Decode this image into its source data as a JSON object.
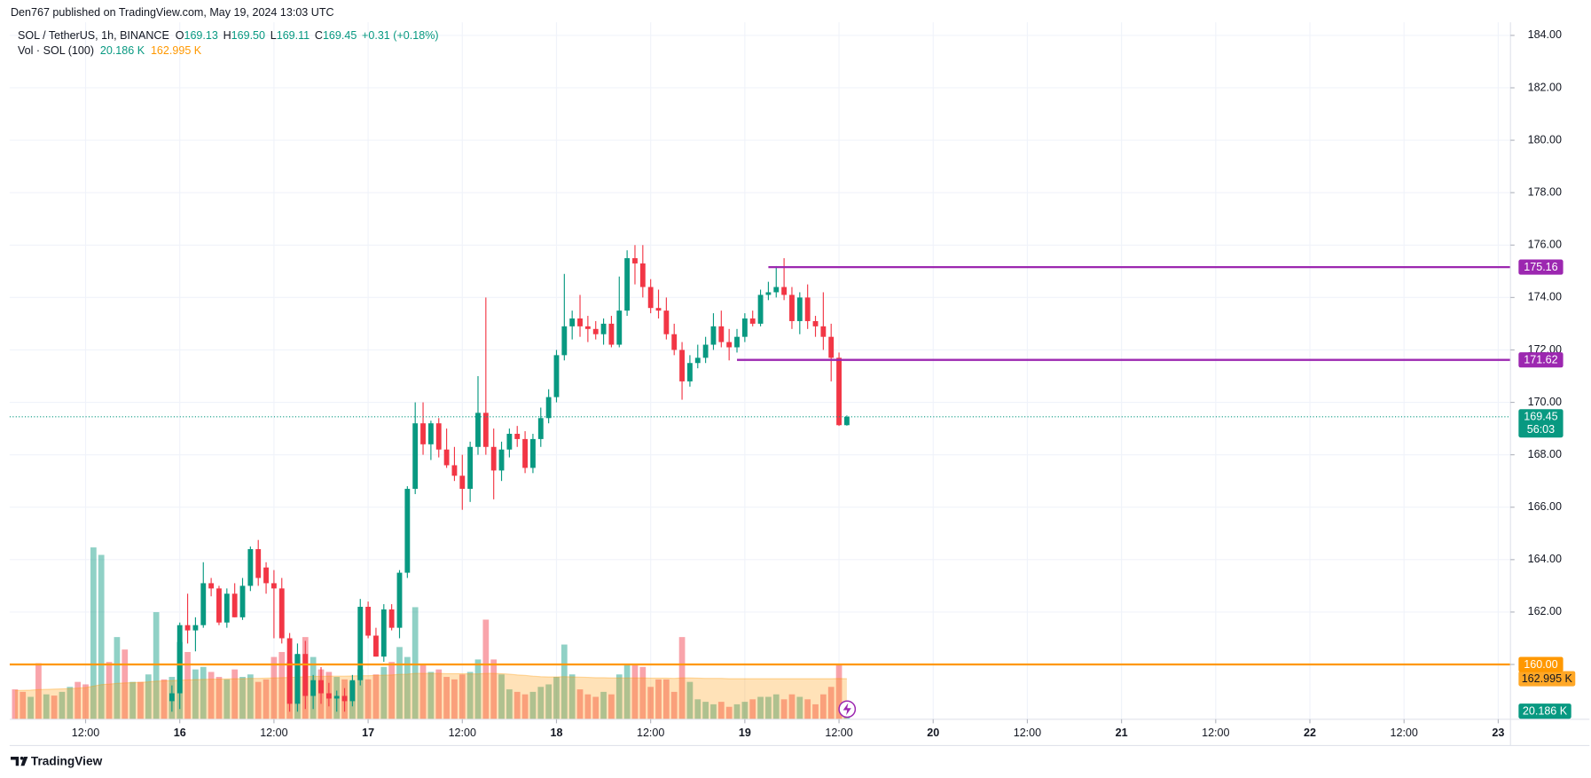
{
  "chart_data": {
    "type": "candlestick",
    "publisher": "Den767 published on TradingView.com, May 19, 2024 13:03 UTC",
    "title": "SOL / TetherUS, 1h, BINANCE",
    "ohlc_legend": [
      [
        "O",
        "169.13"
      ],
      [
        "H",
        "169.50"
      ],
      [
        "L",
        "169.11"
      ],
      [
        "C",
        "169.45"
      ]
    ],
    "change_label": "+0.31 (+0.18%)",
    "footer": "TradingView",
    "up_color": "#089981",
    "down_color": "#f23645",
    "x": [
      1,
      2,
      3,
      4,
      5,
      6,
      7,
      8,
      9,
      10,
      11,
      12,
      13,
      14,
      15,
      16,
      17,
      18,
      19,
      20,
      21,
      22,
      23,
      24,
      25,
      26,
      27,
      28,
      29,
      30,
      31,
      32,
      33,
      34,
      35,
      36,
      37,
      38,
      39,
      40,
      41,
      42,
      43,
      44,
      45,
      46,
      47,
      48,
      49,
      50,
      51,
      52,
      53,
      54,
      55,
      56,
      57,
      58,
      59,
      60,
      61,
      62,
      63,
      64,
      65,
      66,
      67,
      68,
      69,
      70,
      71,
      72,
      73,
      74,
      75,
      76,
      77,
      78,
      79,
      80,
      81,
      82,
      83,
      84,
      85,
      86,
      87,
      88,
      89,
      90,
      91,
      92,
      93,
      94,
      95,
      96,
      97,
      98,
      99,
      100,
      101,
      102,
      103,
      104,
      105,
      106,
      107
    ],
    "open": [
      null,
      null,
      null,
      null,
      null,
      null,
      null,
      null,
      null,
      null,
      null,
      null,
      null,
      null,
      null,
      null,
      null,
      null,
      null,
      null,
      158.6,
      158.9,
      161.5,
      161.3,
      161.5,
      163.1,
      162.9,
      161.6,
      162.7,
      161.8,
      163.0,
      164.4,
      163.7,
      163.1,
      162.9,
      161.0,
      158.5,
      160.4,
      158.8,
      159.4,
      158.9,
      158.7,
      158.8,
      158.6,
      159.4,
      162.2,
      161.1,
      160.3,
      162.1,
      161.4,
      163.5,
      166.7,
      169.2,
      168.4,
      169.2,
      168.2,
      167.6,
      167.2,
      166.7,
      168.3,
      169.6,
      168.3,
      167.4,
      168.2,
      168.8,
      168.6,
      167.5,
      168.6,
      169.4,
      170.2,
      171.8,
      172.9,
      173.2,
      172.9,
      172.8,
      172.6,
      173.0,
      172.2,
      173.5,
      175.5,
      175.3,
      174.4,
      173.6,
      173.5,
      172.6,
      172.0,
      170.8,
      171.5,
      171.7,
      172.2,
      172.9,
      172.3,
      172.1,
      172.5,
      173.2,
      173.0,
      174.1,
      174.2,
      174.4,
      174.1,
      173.1,
      174.0,
      173.1,
      172.9,
      172.5,
      171.7,
      169.13
    ],
    "high": [
      null,
      null,
      null,
      null,
      null,
      null,
      null,
      null,
      null,
      null,
      null,
      null,
      null,
      null,
      null,
      null,
      null,
      null,
      null,
      null,
      159.2,
      161.6,
      162.7,
      161.8,
      163.9,
      163.3,
      163.0,
      162.9,
      163.1,
      163.3,
      164.5,
      164.75,
      163.9,
      163.6,
      163.3,
      161.2,
      160.8,
      160.9,
      159.6,
      159.9,
      159.3,
      159.0,
      159.1,
      159.6,
      162.5,
      162.4,
      161.4,
      162.3,
      162.3,
      163.6,
      166.8,
      170.0,
      170.0,
      169.3,
      169.4,
      169.0,
      168.3,
      168.0,
      168.5,
      171.0,
      174.0,
      169.0,
      168.5,
      169.0,
      169.1,
      168.9,
      168.8,
      169.8,
      170.5,
      172.0,
      174.9,
      173.5,
      174.1,
      173.3,
      173.1,
      173.2,
      173.3,
      174.8,
      175.8,
      176.0,
      176.0,
      174.7,
      174.3,
      174.0,
      173.0,
      172.3,
      171.8,
      172.2,
      172.5,
      173.4,
      173.5,
      172.8,
      172.8,
      173.4,
      173.5,
      174.3,
      174.6,
      175.2,
      175.5,
      174.4,
      174.2,
      174.5,
      173.3,
      174.2,
      173.0,
      171.9,
      169.5
    ],
    "low": [
      null,
      null,
      null,
      null,
      null,
      null,
      null,
      null,
      null,
      null,
      null,
      null,
      null,
      null,
      null,
      null,
      null,
      null,
      null,
      null,
      158.2,
      158.3,
      160.8,
      160.5,
      161.4,
      162.6,
      161.5,
      161.4,
      161.8,
      161.7,
      162.8,
      163.0,
      162.7,
      161.0,
      160.8,
      158.2,
      158.2,
      158.3,
      158.3,
      158.5,
      158.4,
      158.2,
      158.2,
      158.4,
      159.2,
      161.0,
      160.3,
      160.1,
      161.3,
      161.0,
      163.3,
      166.5,
      168.0,
      167.8,
      167.9,
      167.5,
      167.0,
      165.9,
      166.2,
      168.0,
      168.0,
      166.3,
      167.0,
      167.9,
      168.3,
      167.3,
      167.3,
      168.3,
      169.2,
      170.0,
      171.6,
      172.4,
      172.5,
      172.3,
      172.4,
      172.2,
      172.1,
      172.1,
      173.3,
      174.5,
      174.0,
      173.4,
      173.2,
      172.4,
      171.8,
      170.1,
      170.6,
      171.3,
      171.5,
      172.0,
      172.1,
      171.6,
      171.9,
      172.3,
      172.9,
      172.9,
      173.9,
      174.0,
      173.9,
      172.8,
      172.6,
      172.8,
      172.5,
      172.0,
      170.8,
      169.1,
      169.11
    ],
    "close": [
      null,
      null,
      null,
      null,
      null,
      null,
      null,
      null,
      null,
      null,
      null,
      null,
      null,
      null,
      null,
      null,
      null,
      null,
      null,
      null,
      158.9,
      161.5,
      161.3,
      161.5,
      163.1,
      162.9,
      161.6,
      162.7,
      161.8,
      163.0,
      164.4,
      163.3,
      163.1,
      162.9,
      161.0,
      158.5,
      160.4,
      158.8,
      159.4,
      158.9,
      158.7,
      158.8,
      158.6,
      159.4,
      162.2,
      161.1,
      160.3,
      162.1,
      161.4,
      163.5,
      166.7,
      169.2,
      168.4,
      169.2,
      168.2,
      167.6,
      167.2,
      166.7,
      168.3,
      169.6,
      168.3,
      167.4,
      168.2,
      168.8,
      168.6,
      167.5,
      168.6,
      169.4,
      170.2,
      171.8,
      172.9,
      173.2,
      172.9,
      172.8,
      172.6,
      173.0,
      172.2,
      173.5,
      175.5,
      175.3,
      174.4,
      173.6,
      173.5,
      172.6,
      172.0,
      170.8,
      171.5,
      171.7,
      172.2,
      172.9,
      172.3,
      172.1,
      172.5,
      173.2,
      173.0,
      174.1,
      174.2,
      174.4,
      174.1,
      173.1,
      174.0,
      173.1,
      172.9,
      172.5,
      171.7,
      169.13,
      169.45
    ],
    "volume": {
      "name": "Vol · SOL (100)",
      "values": [
        120000,
        110000,
        90000,
        225000,
        100000,
        95000,
        110000,
        130000,
        150000,
        140000,
        690000,
        660000,
        230000,
        330000,
        280000,
        150000,
        150000,
        180000,
        430000,
        160000,
        170000,
        310000,
        270000,
        200000,
        210000,
        190000,
        170000,
        160000,
        200000,
        170000,
        180000,
        150000,
        160000,
        250000,
        270000,
        230000,
        260000,
        330000,
        250000,
        200000,
        190000,
        170000,
        160000,
        150000,
        200000,
        160000,
        180000,
        210000,
        230000,
        290000,
        250000,
        450000,
        220000,
        190000,
        200000,
        170000,
        160000,
        180000,
        190000,
        240000,
        400000,
        240000,
        180000,
        120000,
        110000,
        100000,
        110000,
        130000,
        140000,
        170000,
        300000,
        180000,
        120000,
        100000,
        90000,
        110000,
        100000,
        180000,
        220000,
        220000,
        210000,
        130000,
        160000,
        160000,
        110000,
        330000,
        150000,
        80000,
        70000,
        60000,
        70000,
        50000,
        60000,
        70000,
        80000,
        90000,
        90000,
        100000,
        80000,
        100000,
        90000,
        80000,
        60000,
        100000,
        130000,
        220000,
        20186
      ],
      "up": [
        false,
        false,
        true,
        false,
        true,
        false,
        true,
        true,
        false,
        false,
        true,
        true,
        false,
        true,
        false,
        true,
        false,
        true,
        true,
        false,
        true,
        true,
        false,
        true,
        true,
        false,
        false,
        true,
        false,
        true,
        true,
        false,
        false,
        false,
        false,
        false,
        true,
        false,
        true,
        false,
        false,
        true,
        false,
        true,
        true,
        false,
        false,
        true,
        false,
        true,
        true,
        true,
        false,
        true,
        false,
        false,
        false,
        false,
        true,
        true,
        false,
        false,
        true,
        true,
        false,
        false,
        true,
        true,
        true,
        true,
        true,
        true,
        false,
        false,
        false,
        true,
        false,
        true,
        true,
        false,
        false,
        false,
        false,
        false,
        false,
        false,
        true,
        true,
        true,
        true,
        false,
        false,
        true,
        true,
        false,
        true,
        true,
        true,
        false,
        false,
        true,
        false,
        false,
        false,
        false,
        false,
        true
      ],
      "up_color": "rgba(8,153,129,0.45)",
      "down_color": "rgba(242,54,69,0.45)",
      "ma_values": [
        115000,
        116000,
        117000,
        119000,
        120000,
        121000,
        122000,
        123000,
        125000,
        127000,
        133000,
        139000,
        141000,
        144000,
        146000,
        147000,
        148000,
        150000,
        153000,
        154000,
        155000,
        157000,
        158000,
        159000,
        160000,
        161000,
        161000,
        162000,
        163000,
        163000,
        164000,
        164000,
        165000,
        166000,
        167000,
        168000,
        169000,
        171000,
        172000,
        172000,
        173000,
        173000,
        173000,
        174000,
        175000,
        175000,
        176000,
        177000,
        178000,
        180000,
        181000,
        184000,
        184000,
        184000,
        184000,
        183000,
        183000,
        183000,
        182000,
        182000,
        184000,
        184000,
        183000,
        181000,
        178000,
        176000,
        173000,
        171000,
        170000,
        170000,
        171000,
        170000,
        169000,
        168000,
        167000,
        167000,
        166000,
        166000,
        166000,
        166000,
        166000,
        165000,
        165000,
        165000,
        164000,
        166000,
        166000,
        165000,
        164000,
        164000,
        164000,
        163000,
        163000,
        163000,
        163000,
        163000,
        163000,
        163000,
        163000,
        163000,
        163000,
        163000,
        163000,
        163000,
        163000,
        163500,
        162995
      ],
      "ma_color": "#ff9800",
      "last_label": "20.186 K",
      "ma_last_label": "162.995 K",
      "ylim": [
        0,
        720000
      ]
    },
    "hlines": [
      {
        "value": 175.16,
        "color": "#9c27b0",
        "x_start": 97
      },
      {
        "value": 171.62,
        "color": "#9c27b0",
        "x_start": 93
      },
      {
        "value": 160,
        "label": "160.00",
        "color": "#ff9800",
        "x_start": 0.32
      }
    ],
    "countdown": "56:03",
    "xlim": [
      0.32,
      191.56
    ],
    "ylim": [
      157.91,
      184.5
    ],
    "xticks": [
      {
        "value": 10,
        "label": "12:00"
      },
      {
        "value": 22,
        "label": "16"
      },
      {
        "value": 34,
        "label": "12:00"
      },
      {
        "value": 46,
        "label": "17"
      },
      {
        "value": 58,
        "label": "12:00"
      },
      {
        "value": 70,
        "label": "18"
      },
      {
        "value": 82,
        "label": "12:00"
      },
      {
        "value": 94,
        "label": "19"
      },
      {
        "value": 106,
        "label": "12:00"
      },
      {
        "value": 118,
        "label": "20"
      },
      {
        "value": 130,
        "label": "12:00"
      },
      {
        "value": 142,
        "label": "21"
      },
      {
        "value": 154,
        "label": "12:00"
      },
      {
        "value": 166,
        "label": "22"
      },
      {
        "value": 178,
        "label": "12:00"
      },
      {
        "value": 190,
        "label": "23"
      }
    ],
    "yticks": [
      {
        "value": 160,
        "label": "160.00"
      },
      {
        "value": 162,
        "label": "162.00"
      },
      {
        "value": 164,
        "label": "164.00"
      },
      {
        "value": 166,
        "label": "166.00"
      },
      {
        "value": 168,
        "label": "168.00"
      },
      {
        "value": 170,
        "label": "170.00"
      },
      {
        "value": 172,
        "label": "172.00"
      },
      {
        "value": 174,
        "label": "174.00"
      },
      {
        "value": 176,
        "label": "176.00"
      },
      {
        "value": 178,
        "label": "178.00"
      },
      {
        "value": 180,
        "label": "180.00"
      },
      {
        "value": 182,
        "label": "182.00"
      },
      {
        "value": 184,
        "label": "184.00"
      }
    ],
    "grid": true
  }
}
